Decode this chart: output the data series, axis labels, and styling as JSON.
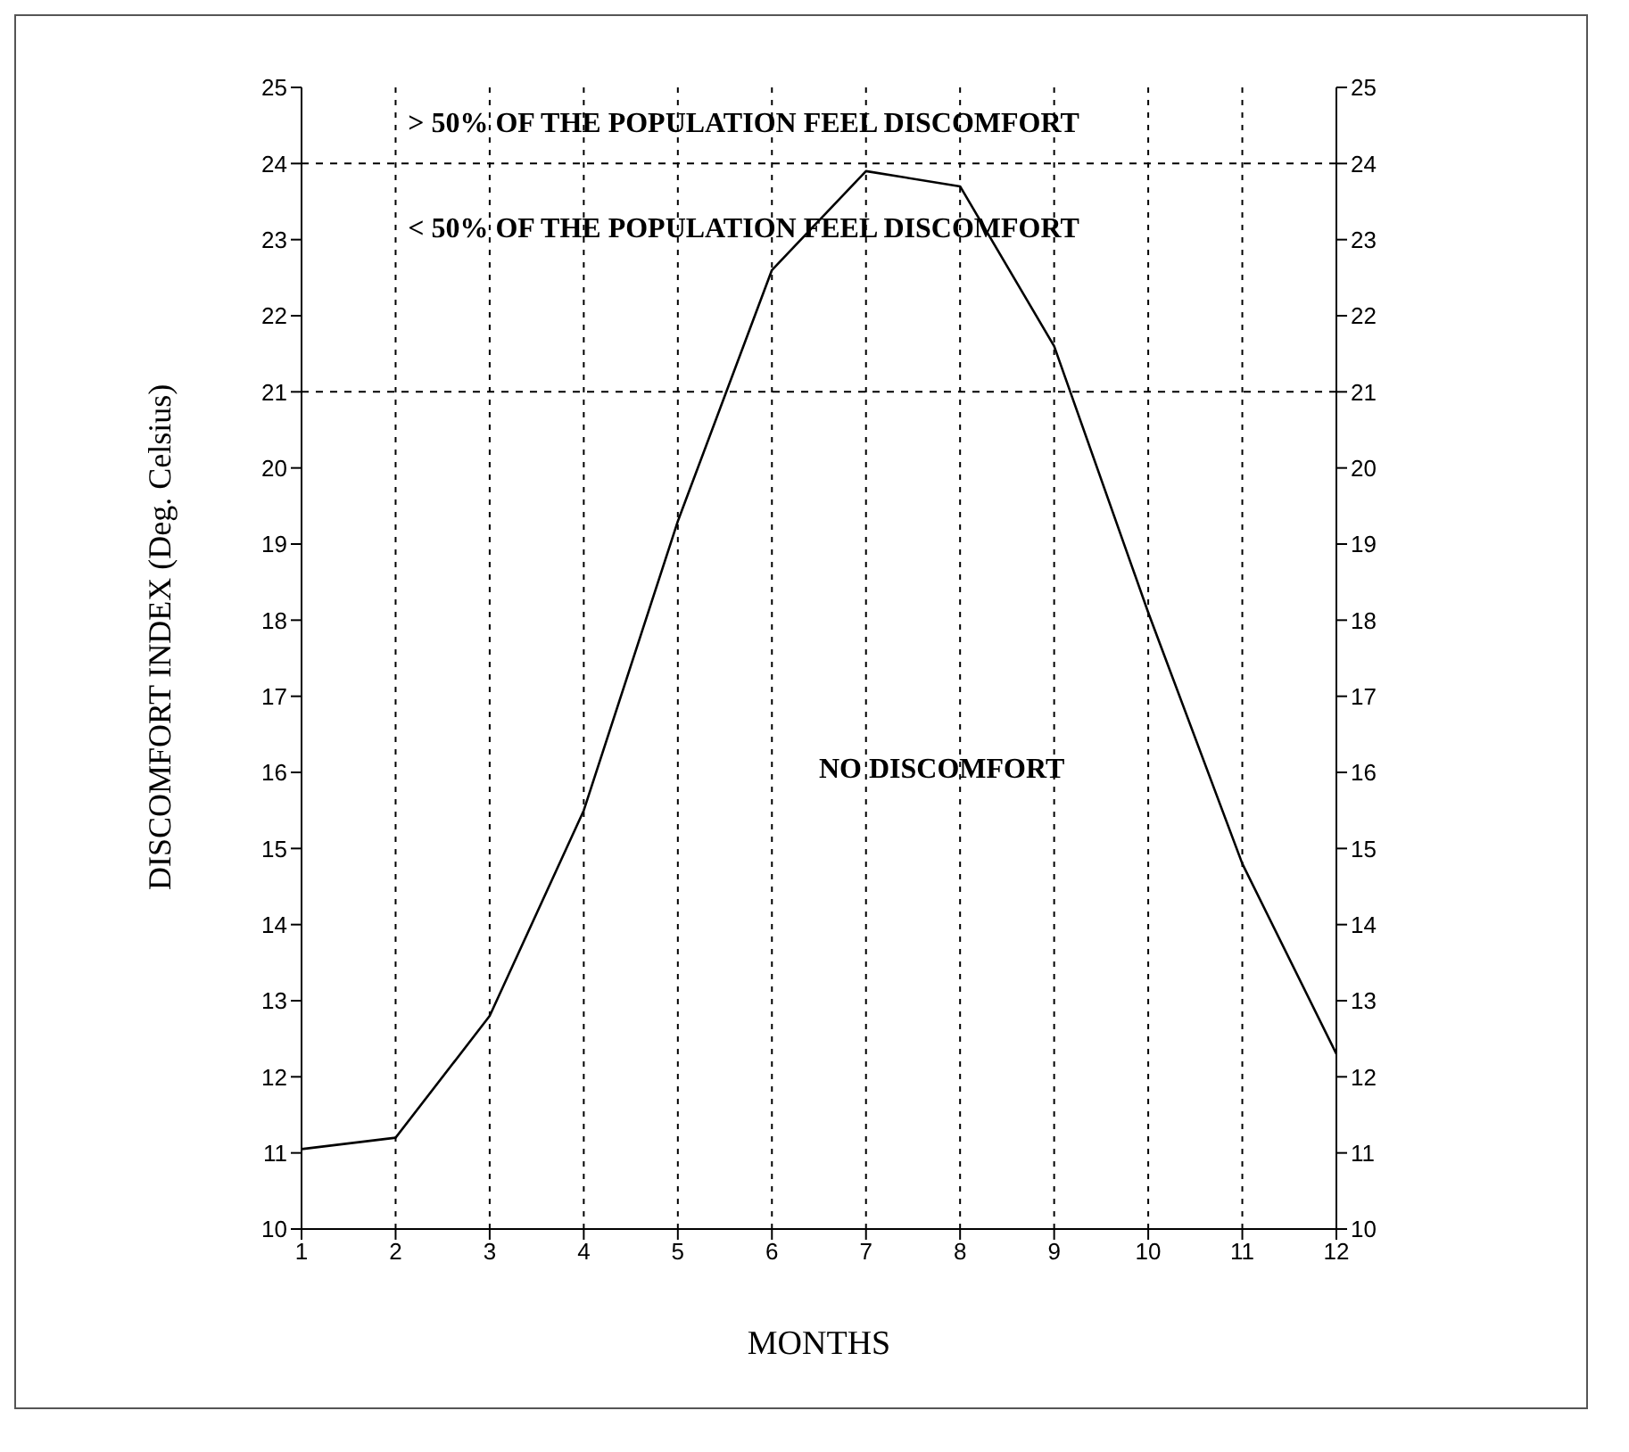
{
  "chart_data": {
    "type": "line",
    "xlabel": "MONTHS",
    "ylabel": "DISCOMFORT INDEX (Deg. Celsius)",
    "x": [
      1,
      2,
      3,
      4,
      5,
      6,
      7,
      8,
      9,
      10,
      11,
      12
    ],
    "series": [
      {
        "color": "#000000",
        "values": [
          11.05,
          11.2,
          12.8,
          15.5,
          19.3,
          22.6,
          23.9,
          23.7,
          21.6,
          18.1,
          14.8,
          12.3
        ]
      }
    ],
    "xlim": [
      1,
      12
    ],
    "xticks": [
      1,
      2,
      3,
      4,
      5,
      6,
      7,
      8,
      9,
      10,
      11,
      12
    ],
    "ylim": [
      10,
      25
    ],
    "yticks": [
      10,
      11,
      12,
      13,
      14,
      15,
      16,
      17,
      18,
      19,
      20,
      21,
      22,
      23,
      24,
      25
    ],
    "y2lim": [
      10,
      25
    ],
    "y2ticks": [
      10,
      11,
      12,
      13,
      14,
      15,
      16,
      17,
      18,
      19,
      20,
      21,
      22,
      23,
      24,
      25
    ],
    "ref_lines": [
      {
        "axis": "y",
        "value": 24,
        "line_style": "dashed"
      },
      {
        "axis": "y",
        "value": 21,
        "line_style": "dashed"
      }
    ],
    "annotations": [
      "> 50% OF THE POPULATION FEEL DISCOMFORT",
      "< 50% OF THE POPULATION FEEL DISCOMFORT",
      "NO DISCOMFORT"
    ],
    "grid": "x",
    "marker": "none",
    "line_style": "solid",
    "legend": false
  }
}
